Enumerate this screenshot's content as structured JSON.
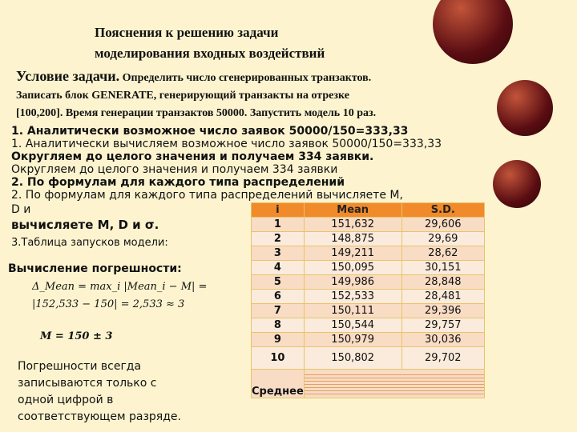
{
  "title": {
    "line1": "Пояснения к решению задачи",
    "line2": "моделирования входных воздействий"
  },
  "condition": {
    "label": "Условие задачи.",
    "text1": " Определить число сгенерированных транзактов.",
    "text2": "Записать блок  GENERATE,  генерирующий транзакты  на  отрезке",
    "text3": "[100,200]. Время генерации  транзактов 50000. Запустить модель 10 раз."
  },
  "steps": {
    "s1_bold": "1. Аналитически возможное число заявок 50000/150=333,33",
    "s1_over": "1. Аналитически вычисляем возможное число заявок 50000/150=333,33",
    "s2_bold": "Округляем до целого значения  и получаем 334 заявки.",
    "s2_over": "Округляем до целого значения и получаем 334 заявки",
    "s3_bold": "2. По формулам для каждого типа распределений",
    "s3_over": "2. По формулам для каждого типа распределений вычисляете M,",
    "s3_over2": "D и",
    "s3_end": "вычисляете M, D  и σ.",
    "s4": "3.Таблица запусков модели:"
  },
  "error": {
    "heading": "Вычисление погрешности:",
    "formula1": "Δ_Mean = max_i |Mean_i − M| =",
    "formula2": "|152,533 − 150| = 2,533 ≈ 3",
    "result": "M = 150 ± 3"
  },
  "note": [
    "Погрешности всегда",
    "записываются только с",
    " одной цифрой в",
    "соответствующем разряде."
  ],
  "table": {
    "headers": [
      "i",
      "Mean",
      "S.D."
    ],
    "rows": [
      [
        "1",
        "151,632",
        "29,606"
      ],
      [
        "2",
        "148,875",
        "29,69"
      ],
      [
        "3",
        "149,211",
        "28,62"
      ],
      [
        "4",
        "150,095",
        "30,151"
      ],
      [
        "5",
        "149,986",
        "28,848"
      ],
      [
        "6",
        "152,533",
        "28,481"
      ],
      [
        "7",
        "150,111",
        "29,396"
      ],
      [
        "8",
        "150,544",
        "29,757"
      ],
      [
        "9",
        "150,979",
        "30,036"
      ],
      [
        "10",
        "150,802",
        "29,702"
      ]
    ],
    "footer": "Среднее"
  },
  "colors": {
    "background": "#fdf4cf",
    "header": "#f08a2a",
    "row": "#f9dcc4"
  }
}
